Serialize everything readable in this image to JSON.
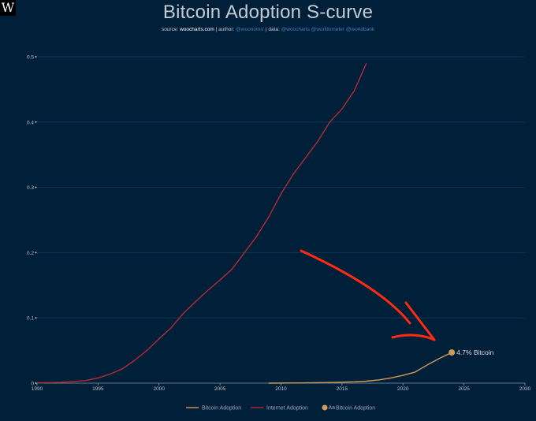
{
  "logo": {
    "letter": "W"
  },
  "header": {
    "title": "Bitcoin Adoption S-curve",
    "source_label": "source:",
    "source_value": "woocharts.com",
    "sep1": " | ",
    "author_label": "author:",
    "author_value": "@woonomic",
    "sep2": " | ",
    "data_label": "data:",
    "data_value": "@woocharts @worldometer @worldbank"
  },
  "colors": {
    "background": "#00203a",
    "internet": "#b52b35",
    "bitcoin": "#d49a58",
    "arrow": "#ff2a12",
    "grid": "#0f3a63"
  },
  "chart_data": {
    "type": "line",
    "title": "Bitcoin Adoption S-curve",
    "xlabel": "",
    "ylabel": "",
    "xlim": [
      1990,
      2030
    ],
    "ylim": [
      0,
      0.5
    ],
    "x_ticks": [
      "1990",
      "1995",
      "2000",
      "2005",
      "2010",
      "2015",
      "2020",
      "2025",
      "2030"
    ],
    "y_ticks": [
      "0",
      "0.1",
      "0.2",
      "0.3",
      "0.4",
      "0.5"
    ],
    "grid": true,
    "legend_position": "bottom",
    "series": [
      {
        "name": "Internet Adoption",
        "color": "#b52b35",
        "points": [
          [
            1990,
            0.0005
          ],
          [
            1991,
            0.0008
          ],
          [
            1992,
            0.0013
          ],
          [
            1993,
            0.0025
          ],
          [
            1994,
            0.004
          ],
          [
            1995,
            0.008
          ],
          [
            1996,
            0.014
          ],
          [
            1997,
            0.022
          ],
          [
            1998,
            0.035
          ],
          [
            1999,
            0.05
          ],
          [
            2000,
            0.068
          ],
          [
            2001,
            0.085
          ],
          [
            2002,
            0.107
          ],
          [
            2003,
            0.125
          ],
          [
            2004,
            0.142
          ],
          [
            2005,
            0.158
          ],
          [
            2006,
            0.175
          ],
          [
            2007,
            0.2
          ],
          [
            2008,
            0.225
          ],
          [
            2009,
            0.255
          ],
          [
            2010,
            0.29
          ],
          [
            2011,
            0.32
          ],
          [
            2012,
            0.345
          ],
          [
            2013,
            0.37
          ],
          [
            2014,
            0.4
          ],
          [
            2015,
            0.42
          ],
          [
            2016,
            0.448
          ],
          [
            2017,
            0.49
          ]
        ]
      },
      {
        "name": "Bitcoin Adoption",
        "color": "#d49a58",
        "points": [
          [
            2009,
            0
          ],
          [
            2012,
            0.0005
          ],
          [
            2014,
            0.001
          ],
          [
            2016,
            0.002
          ],
          [
            2017,
            0.003
          ],
          [
            2018,
            0.005
          ],
          [
            2019,
            0.008
          ],
          [
            2020,
            0.012
          ],
          [
            2021,
            0.017
          ],
          [
            2022,
            0.028
          ],
          [
            2023,
            0.038
          ],
          [
            2024,
            0.047
          ]
        ]
      }
    ],
    "marker": {
      "series": "Bitcoin Adoption",
      "x": 2024,
      "y": 0.047,
      "label": "4.7% Bitcoin"
    },
    "legend": [
      {
        "name": "Bitcoin Adoption",
        "symbol": "line",
        "color": "#d49a58"
      },
      {
        "name": "Internet Adoption",
        "symbol": "line",
        "color": "#b52b35"
      },
      {
        "name": "Bitcoin Adoption",
        "symbol": "marker",
        "color": "#d49a58",
        "marker_text": "Aa"
      }
    ]
  }
}
